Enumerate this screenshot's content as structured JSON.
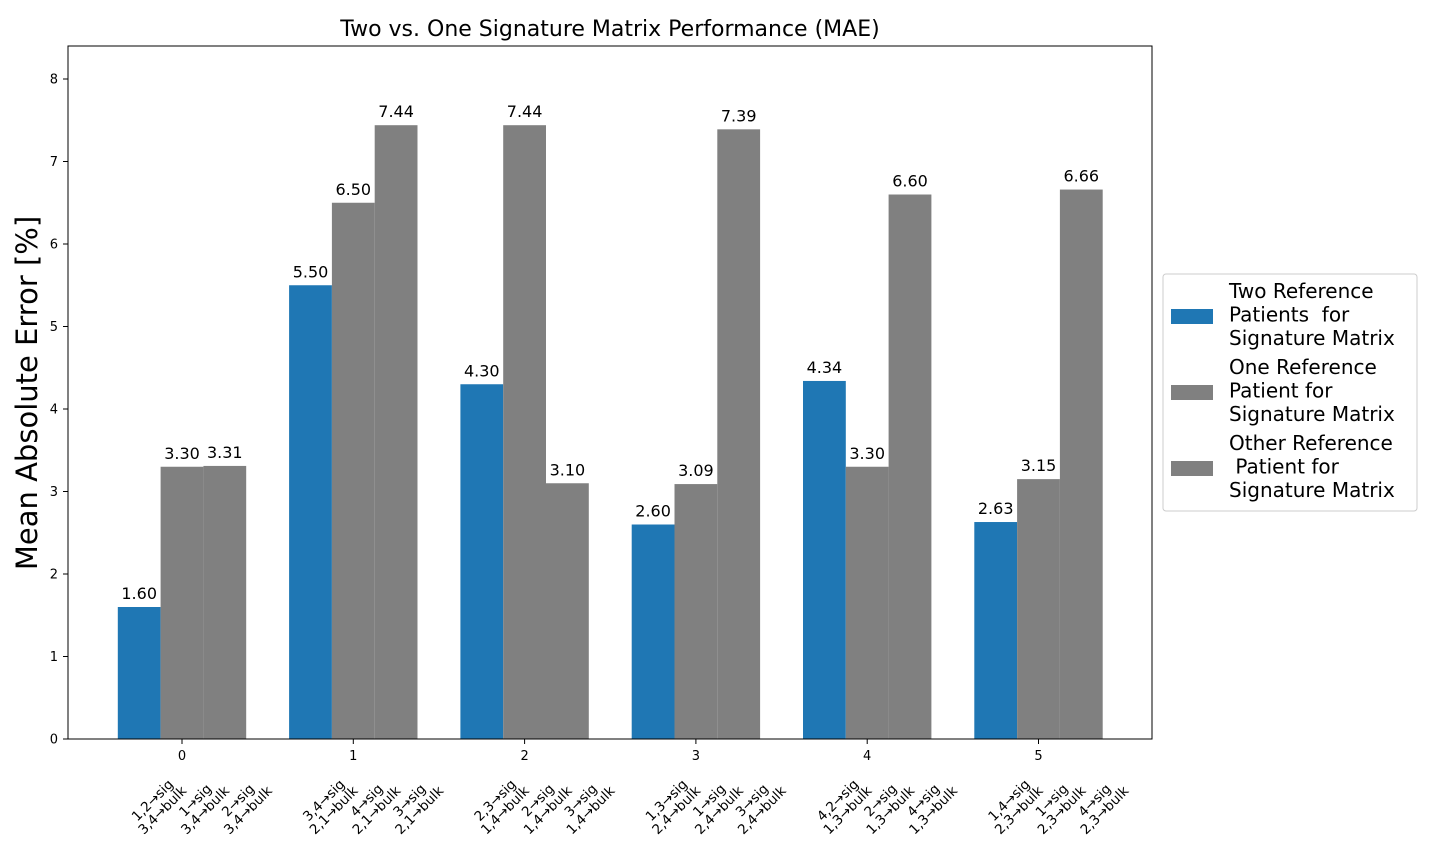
{
  "chart_data": {
    "type": "bar",
    "title": "Two vs. One Signature Matrix Performance (MAE)",
    "xlabel": "",
    "ylabel": "Mean Absolute Error [%]",
    "ylim": [
      0,
      8.4
    ],
    "yticks": [
      0,
      1,
      2,
      3,
      4,
      5,
      6,
      7,
      8
    ],
    "categories": [
      "0",
      "1",
      "2",
      "3",
      "4",
      "5"
    ],
    "series": [
      {
        "name": "Two Reference Patients  for Signature Matrix",
        "legend_lines": [
          "Two Reference",
          "Patients  for",
          "Signature Matrix"
        ],
        "color": "#1f77b4",
        "values": [
          1.6,
          5.5,
          4.3,
          2.6,
          4.34,
          2.63
        ],
        "value_labels": [
          "1.60",
          "5.50",
          "4.30",
          "2.60",
          "4.34",
          "2.63"
        ]
      },
      {
        "name": "One Reference Patient for Signature Matrix",
        "legend_lines": [
          "One Reference",
          "Patient for",
          "Signature Matrix"
        ],
        "color": "#808080",
        "values": [
          3.3,
          6.5,
          7.44,
          3.09,
          3.3,
          3.15
        ],
        "value_labels": [
          "3.30",
          "6.50",
          "7.44",
          "3.09",
          "3.30",
          "3.15"
        ]
      },
      {
        "name": "Other Reference  Patient for Signature Matrix",
        "legend_lines": [
          "Other Reference",
          " Patient for",
          "Signature Matrix"
        ],
        "color": "#808080",
        "values": [
          3.31,
          7.44,
          3.1,
          7.39,
          6.6,
          6.66
        ],
        "value_labels": [
          "3.31",
          "7.44",
          "3.10",
          "7.39",
          "6.60",
          "6.66"
        ]
      }
    ],
    "bar_annotations": [
      [
        [
          "1,2→sig",
          "3,4→bulk"
        ],
        [
          "1→sig",
          "3,4→bulk"
        ],
        [
          "2→sig",
          "3,4→bulk"
        ]
      ],
      [
        [
          "3,4→sig",
          "2,1→bulk"
        ],
        [
          "4→sig",
          "2,1→bulk"
        ],
        [
          "3→sig",
          "2,1→bulk"
        ]
      ],
      [
        [
          "2,3→sig",
          "1,4→bulk"
        ],
        [
          "2→sig",
          "1,4→bulk"
        ],
        [
          "3→sig",
          "1,4→bulk"
        ]
      ],
      [
        [
          "1,3→sig",
          "2,4→bulk"
        ],
        [
          "1→sig",
          "2,4→bulk"
        ],
        [
          "3→sig",
          "2,4→bulk"
        ]
      ],
      [
        [
          "4,2→sig",
          "1,3→bulk"
        ],
        [
          "2→sig",
          "1,3→bulk"
        ],
        [
          "4→sig",
          "1,3→bulk"
        ]
      ],
      [
        [
          "1,4→sig",
          "2,3→bulk"
        ],
        [
          "1→sig",
          "2,3→bulk"
        ],
        [
          "4→sig",
          "2,3→bulk"
        ]
      ]
    ],
    "legend_position": "center-right",
    "grid": false
  }
}
